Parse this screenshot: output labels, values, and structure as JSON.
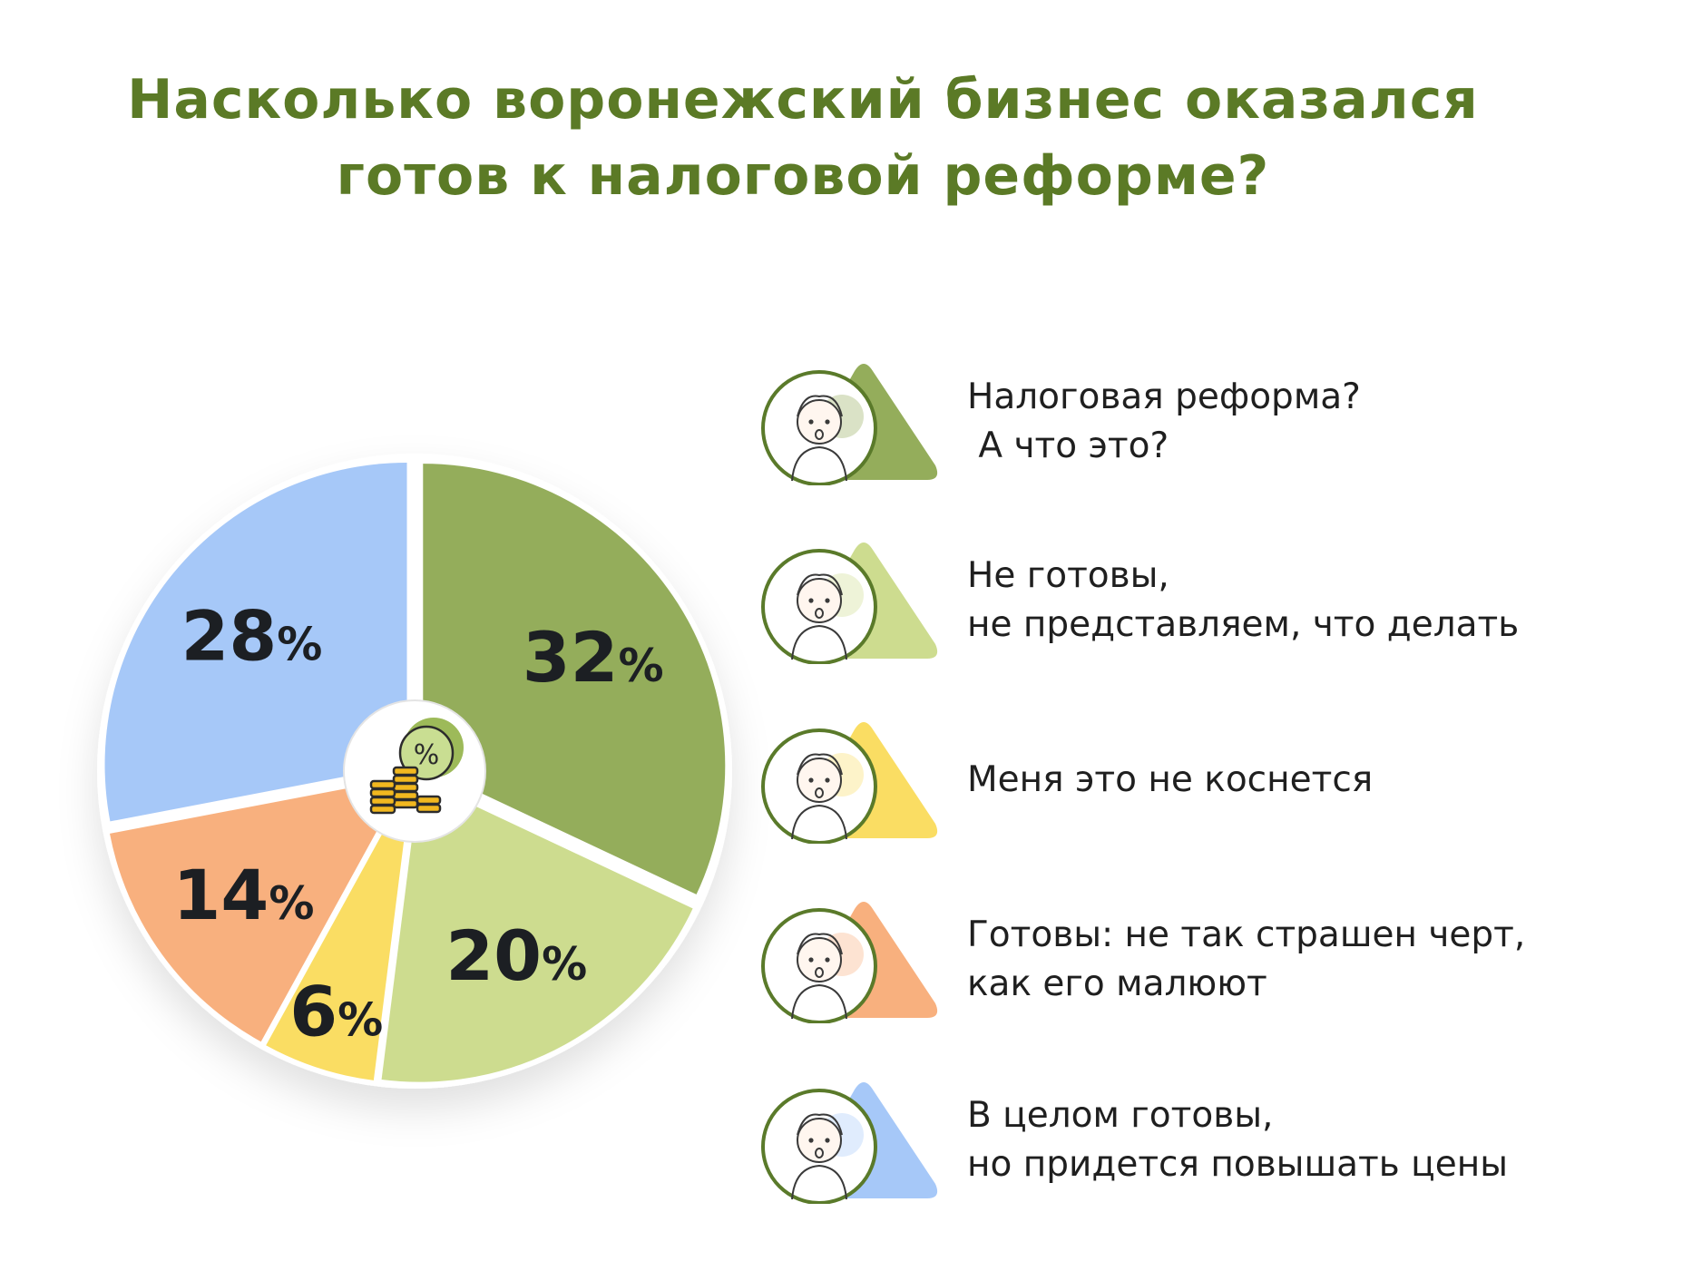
{
  "title": {
    "line1": "Насколько воронежский бизнес оказался",
    "line2": "готов к налоговой реформе?"
  },
  "center_icon": {
    "name": "coins-percent-icon",
    "symbol": "%"
  },
  "chart_data": {
    "type": "pie",
    "title": "Насколько воронежский бизнес оказался готов к налоговой реформе?",
    "slices": [
      {
        "label": "Налоговая реформа? А что это?",
        "value": 32,
        "display": "32%",
        "color": "#94ad5b"
      },
      {
        "label": "Не готовы, не представляем, что делать",
        "value": 20,
        "display": "20%",
        "color": "#cddc8f"
      },
      {
        "label": "Меня это не коснется",
        "value": 6,
        "display": "6%",
        "color": "#fadd63"
      },
      {
        "label": "Готовы: не так страшен черт, как его малюют",
        "value": 14,
        "display": "14%",
        "color": "#f8b07e"
      },
      {
        "label": "В целом готовы, но придется повышать цены",
        "value": 28,
        "display": "28%",
        "color": "#a6c8f8"
      }
    ],
    "start": "top",
    "direction": "clockwise",
    "legend_position": "right"
  },
  "legend": [
    {
      "text": "Налоговая реформа?\n А что это?",
      "color": "#94ad5b",
      "avatar": "shocked-face-avatar"
    },
    {
      "text": "Не готовы,\nне представляем, что делать",
      "color": "#cddc8f",
      "avatar": "stressed-person-avatar"
    },
    {
      "text": "Меня это не коснется",
      "color": "#fadd63",
      "avatar": "indifferent-boy-avatar"
    },
    {
      "text": "Готовы: не так страшен черт,\nкак его малюют",
      "color": "#f8b07e",
      "avatar": "relaxed-boy-avatar"
    },
    {
      "text": "В целом готовы,\nно придется повышать цены",
      "color": "#a6c8f8",
      "avatar": "surprised-boy-avatar"
    }
  ]
}
